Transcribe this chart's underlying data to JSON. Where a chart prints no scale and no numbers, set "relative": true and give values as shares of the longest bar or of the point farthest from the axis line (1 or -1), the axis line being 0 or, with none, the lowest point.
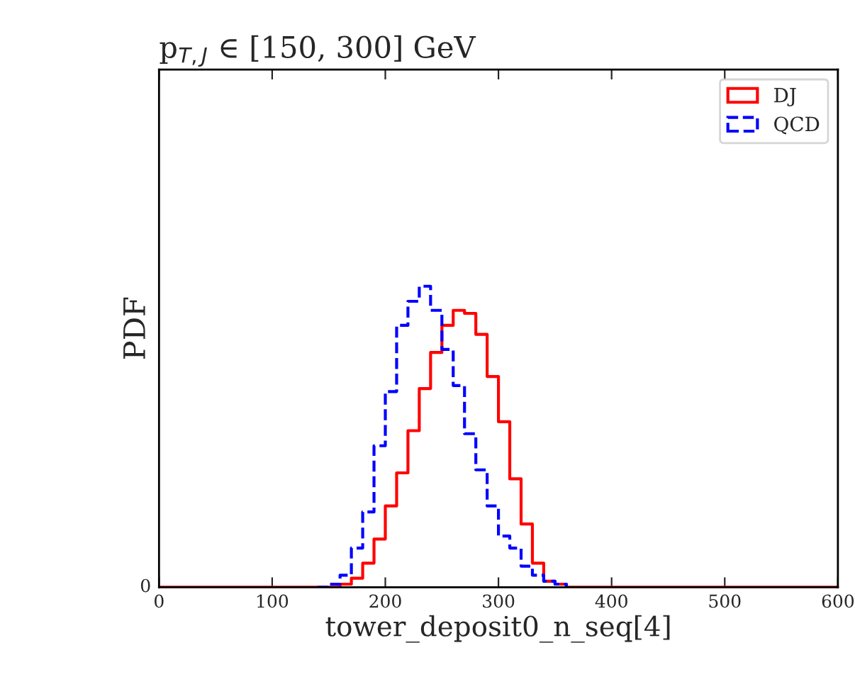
{
  "chart_data": {
    "type": "step",
    "title": "p$_{T,J}$ ∈ [150, 300] GeV",
    "xlabel": "tower_deposit0_n_seq[4]",
    "ylabel": "PDF",
    "relative": true,
    "annotations": [
      "0"
    ],
    "x": [
      0,
      10,
      20,
      30,
      40,
      50,
      60,
      70,
      80,
      90,
      100,
      110,
      120,
      130,
      140,
      150,
      160,
      170,
      180,
      190,
      200,
      210,
      220,
      230,
      240,
      250,
      260,
      270,
      280,
      290,
      300,
      310,
      320,
      330,
      340,
      350,
      360,
      370,
      380,
      390,
      400,
      410,
      420,
      430,
      440,
      450,
      460,
      470,
      480,
      490,
      500,
      510,
      520,
      530,
      540,
      550,
      560,
      570,
      580,
      590,
      600
    ],
    "series": [
      {
        "name": "DJ",
        "color": "#ff0000",
        "line_style": "solid",
        "values": [
          0,
          0,
          0,
          0,
          0,
          0,
          0,
          0,
          0,
          0,
          0,
          0,
          0,
          0,
          0,
          0.0,
          0.01,
          0.03,
          0.08,
          0.16,
          0.27,
          0.38,
          0.52,
          0.66,
          0.78,
          0.87,
          0.92,
          0.91,
          0.84,
          0.7,
          0.55,
          0.36,
          0.21,
          0.08,
          0.02,
          0.01,
          0,
          0,
          0,
          0,
          0,
          0,
          0,
          0,
          0,
          0,
          0,
          0,
          0,
          0,
          0,
          0,
          0,
          0,
          0,
          0,
          0,
          0,
          0,
          0,
          0
        ]
      },
      {
        "name": "QCD",
        "color": "#0000ff",
        "line_style": "dashed",
        "values": [
          null,
          null,
          null,
          null,
          null,
          null,
          null,
          null,
          null,
          null,
          null,
          null,
          null,
          null,
          0,
          0.01,
          0.04,
          0.13,
          0.25,
          0.47,
          0.65,
          0.87,
          0.95,
          1,
          0.92,
          0.79,
          0.67,
          0.51,
          0.39,
          0.27,
          0.17,
          0.13,
          0.07,
          0.04,
          0.02,
          0.01,
          0,
          null,
          null,
          null,
          null,
          null,
          null,
          null,
          null,
          null,
          null,
          null,
          null,
          null,
          null,
          null,
          null,
          null,
          null,
          null,
          null,
          null,
          null,
          null,
          null
        ]
      }
    ],
    "xlim": [
      0,
      600
    ],
    "xticks": [
      0,
      100,
      200,
      300,
      400,
      500,
      600
    ],
    "legend": "top right"
  }
}
